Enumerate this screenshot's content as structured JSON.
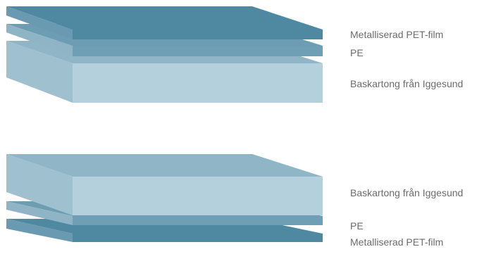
{
  "colors": {
    "pet_top": "#4f88a1",
    "pet_front": "#4f88a1",
    "pet_side": "#6a9ab2",
    "pe_top": "#6d9db3",
    "pe_front": "#6f9fb5",
    "pe_side": "#8eb4c6",
    "board_top": "#8fb5c6",
    "board_front": "#b4d0dc",
    "board_side": "#9fc0cf",
    "label_text": "#6b6b6b"
  },
  "stacks": [
    {
      "name": "top-stack",
      "layers_top_to_bottom": [
        {
          "key": "pet",
          "label": "Metalliserad PET-film"
        },
        {
          "key": "pe",
          "label": "PE"
        },
        {
          "key": "board",
          "label": "Baskartong från Iggesund"
        }
      ]
    },
    {
      "name": "bottom-stack",
      "layers_top_to_bottom": [
        {
          "key": "board",
          "label": "Baskartong från Iggesund"
        },
        {
          "key": "pe",
          "label": "PE"
        },
        {
          "key": "pet",
          "label": "Metalliserad PET-film"
        }
      ]
    }
  ]
}
